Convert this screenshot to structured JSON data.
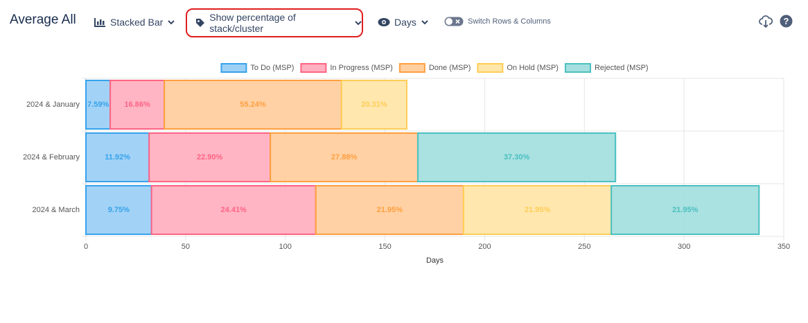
{
  "toolbar": {
    "title": "Average All",
    "chart_type": "Stacked Bar",
    "percentage_toggle": "Show percentage of stack/cluster",
    "unit": "Days",
    "switch": "Switch Rows & Columns"
  },
  "chart_data": {
    "type": "stacked-bar-horizontal",
    "x_label": "Days",
    "categories": [
      "2024 & January",
      "2024 & February",
      "2024 & March"
    ],
    "xlim": [
      0,
      350
    ],
    "xticks": [
      0,
      50,
      100,
      150,
      200,
      250,
      300,
      350
    ],
    "grid": true,
    "legend": "top",
    "series": [
      {
        "name": "To Do (MSP)",
        "color": "#36a2eb",
        "fill": "#9dd0f5",
        "values": [
          12.2,
          31.7,
          32.9
        ],
        "labels": [
          "7.59%",
          "11.92%",
          "9.75%"
        ]
      },
      {
        "name": "In Progress (MSP)",
        "color": "#ff6384",
        "fill": "#ffb1c1",
        "values": [
          27.1,
          60.8,
          82.4
        ],
        "labels": [
          "16.86%",
          "22.90%",
          "24.41%"
        ]
      },
      {
        "name": "Done (MSP)",
        "color": "#ff9f40",
        "fill": "#ffcf9f",
        "values": [
          88.9,
          74.0,
          74.1
        ],
        "labels": [
          "55.24%",
          "27.88%",
          "21.95%"
        ]
      },
      {
        "name": "On Hold (MSP)",
        "color": "#ffcd56",
        "fill": "#ffe6aa",
        "values": [
          32.7,
          null,
          74.1
        ],
        "labels": [
          "20.31%",
          null,
          "21.95%"
        ]
      },
      {
        "name": "Rejected (MSP)",
        "color": "#4bc0c0",
        "fill": "#a5dfdf",
        "values": [
          null,
          99.1,
          74.1
        ],
        "labels": [
          null,
          "37.30%",
          "21.95%"
        ]
      }
    ]
  }
}
